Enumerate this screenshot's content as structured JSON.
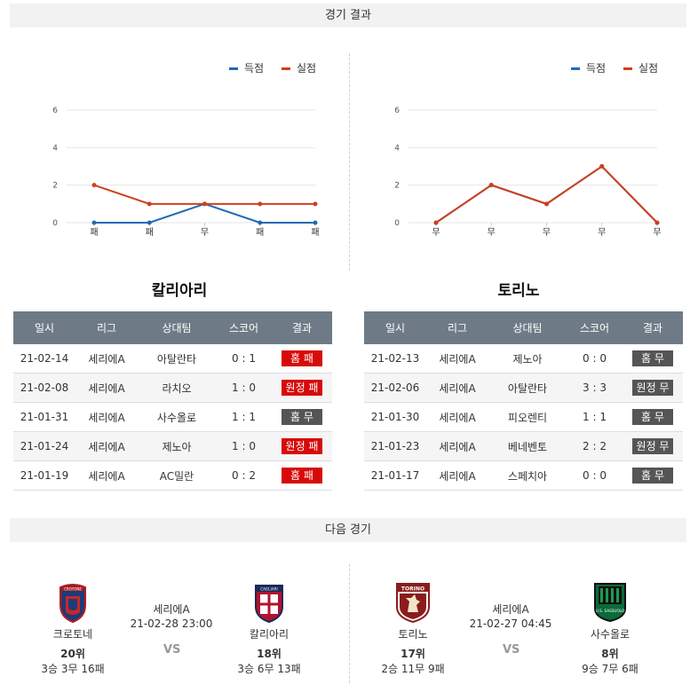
{
  "sections": {
    "results_title": "경기 결과",
    "next_title": "다음 경기"
  },
  "colors": {
    "scored": "#1f6bb5",
    "conceded": "#d0401e",
    "loss_badge": "#d70a0a",
    "draw_badge": "#555555",
    "table_header": "#6e7b86"
  },
  "charts": [
    {
      "type": "line",
      "team": "칼리아리",
      "legend": [
        "득점",
        "실점"
      ],
      "categories": [
        "패",
        "패",
        "무",
        "패",
        "패"
      ],
      "y_ticks": [
        "0",
        "2",
        "4",
        "6"
      ],
      "ylim": [
        0,
        6
      ],
      "series": [
        {
          "name": "득점",
          "values": [
            0,
            0,
            1,
            0,
            0
          ]
        },
        {
          "name": "실점",
          "values": [
            2,
            1,
            1,
            1,
            1
          ]
        }
      ]
    },
    {
      "type": "line",
      "team": "토리노",
      "legend": [
        "득점",
        "실점"
      ],
      "categories": [
        "무",
        "무",
        "무",
        "무",
        "무"
      ],
      "y_ticks": [
        "0",
        "2",
        "4",
        "6"
      ],
      "ylim": [
        0,
        6
      ],
      "series": [
        {
          "name": "득점",
          "values": [
            0,
            2,
            1,
            3,
            0
          ]
        },
        {
          "name": "실점",
          "values": [
            0,
            2,
            1,
            3,
            0
          ]
        }
      ]
    }
  ],
  "chart_data": [
    {
      "type": "line",
      "categories": [
        "패",
        "패",
        "무",
        "패",
        "패"
      ],
      "series": [
        {
          "name": "득점",
          "values": [
            0,
            0,
            1,
            0,
            0
          ]
        },
        {
          "name": "실점",
          "values": [
            2,
            1,
            1,
            1,
            1
          ]
        }
      ],
      "ylim": [
        0,
        6
      ]
    },
    {
      "type": "line",
      "categories": [
        "무",
        "무",
        "무",
        "무",
        "무"
      ],
      "series": [
        {
          "name": "득점",
          "values": [
            0,
            2,
            1,
            3,
            0
          ]
        },
        {
          "name": "실점",
          "values": [
            0,
            2,
            1,
            3,
            0
          ]
        }
      ],
      "ylim": [
        0,
        6
      ]
    }
  ],
  "tables": [
    {
      "team": "칼리아리",
      "headers": [
        "일시",
        "리그",
        "상대팀",
        "스코어",
        "결과"
      ],
      "rows": [
        {
          "date": "21-02-14",
          "league": "세리에A",
          "opponent": "아탈란타",
          "score": "0 : 1",
          "result": "홈 패",
          "kind": "loss"
        },
        {
          "date": "21-02-08",
          "league": "세리에A",
          "opponent": "라치오",
          "score": "1 : 0",
          "result": "원정 패",
          "kind": "loss"
        },
        {
          "date": "21-01-31",
          "league": "세리에A",
          "opponent": "사수올로",
          "score": "1 : 1",
          "result": "홈 무",
          "kind": "draw"
        },
        {
          "date": "21-01-24",
          "league": "세리에A",
          "opponent": "제노아",
          "score": "1 : 0",
          "result": "원정 패",
          "kind": "loss"
        },
        {
          "date": "21-01-19",
          "league": "세리에A",
          "opponent": "AC밀란",
          "score": "0 : 2",
          "result": "홈 패",
          "kind": "loss"
        }
      ]
    },
    {
      "team": "토리노",
      "headers": [
        "일시",
        "리그",
        "상대팀",
        "스코어",
        "결과"
      ],
      "rows": [
        {
          "date": "21-02-13",
          "league": "세리에A",
          "opponent": "제노아",
          "score": "0 : 0",
          "result": "홈 무",
          "kind": "draw"
        },
        {
          "date": "21-02-06",
          "league": "세리에A",
          "opponent": "아탈란타",
          "score": "3 : 3",
          "result": "원정 무",
          "kind": "draw"
        },
        {
          "date": "21-01-30",
          "league": "세리에A",
          "opponent": "피오렌티",
          "score": "1 : 1",
          "result": "홈 무",
          "kind": "draw"
        },
        {
          "date": "21-01-23",
          "league": "세리에A",
          "opponent": "베네벤토",
          "score": "2 : 2",
          "result": "원정 무",
          "kind": "draw"
        },
        {
          "date": "21-01-17",
          "league": "세리에A",
          "opponent": "스페치아",
          "score": "0 : 0",
          "result": "홈 무",
          "kind": "draw"
        }
      ]
    }
  ],
  "next_matches": [
    {
      "league": "세리에A",
      "datetime": "21-02-28 23:00",
      "vs": "VS",
      "home": {
        "name": "크로토네",
        "rank": "20위",
        "record": "3승 3무 16패",
        "logo": "crotone-logo"
      },
      "away": {
        "name": "칼리아리",
        "rank": "18위",
        "record": "3승 6무 13패",
        "logo": "cagliari-logo"
      }
    },
    {
      "league": "세리에A",
      "datetime": "21-02-27 04:45",
      "vs": "VS",
      "home": {
        "name": "토리노",
        "rank": "17위",
        "record": "2승 11무 9패",
        "logo": "torino-logo"
      },
      "away": {
        "name": "사수올로",
        "rank": "8위",
        "record": "9승 7무 6패",
        "logo": "sassuolo-logo"
      }
    }
  ],
  "logo_text": {
    "crotone": "CROTONE",
    "cagliari": "CAGLIARI",
    "torino": "TORINO",
    "sassuolo": "U.S. SASSUOLO"
  }
}
